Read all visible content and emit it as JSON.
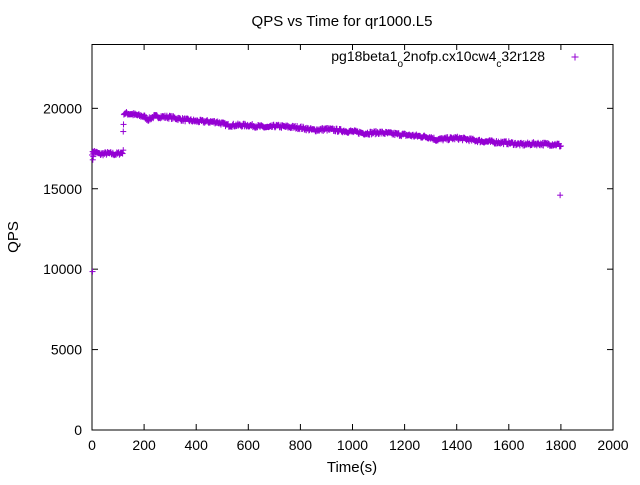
{
  "chart_data": {
    "type": "scatter",
    "title": "QPS vs Time for qr1000.L5",
    "xlabel": "Time(s)",
    "ylabel": "QPS",
    "xlim": [
      0,
      2000
    ],
    "ylim": [
      0,
      24000
    ],
    "x_ticks": [
      0,
      200,
      400,
      600,
      800,
      1000,
      1200,
      1400,
      1600,
      1800,
      2000
    ],
    "y_ticks": [
      0,
      5000,
      10000,
      15000,
      20000
    ],
    "grid": false,
    "legend_position": "top-right",
    "marker": "+",
    "series": [
      {
        "name_parts": [
          {
            "text": "pg18beta1",
            "sub": false
          },
          {
            "text": "o",
            "sub": true
          },
          {
            "text": "2nofp.cx10cw4",
            "sub": false
          },
          {
            "text": "c",
            "sub": true
          },
          {
            "text": "32r128",
            "sub": false
          }
        ],
        "color": "#9400d3",
        "anchors": [
          [
            0,
            17200
          ],
          [
            10,
            17300
          ],
          [
            30,
            17150
          ],
          [
            60,
            17200
          ],
          [
            90,
            17150
          ],
          [
            118,
            17250
          ],
          [
            122,
            19700
          ],
          [
            150,
            19650
          ],
          [
            180,
            19550
          ],
          [
            200,
            19500
          ],
          [
            215,
            19300
          ],
          [
            240,
            19500
          ],
          [
            300,
            19450
          ],
          [
            350,
            19300
          ],
          [
            400,
            19200
          ],
          [
            480,
            19150
          ],
          [
            520,
            18950
          ],
          [
            600,
            18950
          ],
          [
            680,
            18800
          ],
          [
            700,
            18900
          ],
          [
            800,
            18800
          ],
          [
            850,
            18650
          ],
          [
            900,
            18700
          ],
          [
            1000,
            18550
          ],
          [
            1050,
            18450
          ],
          [
            1100,
            18500
          ],
          [
            1200,
            18350
          ],
          [
            1300,
            18200
          ],
          [
            1320,
            18050
          ],
          [
            1400,
            18150
          ],
          [
            1500,
            17950
          ],
          [
            1600,
            17850
          ],
          [
            1650,
            17750
          ],
          [
            1700,
            17800
          ],
          [
            1790,
            17750
          ],
          [
            1800,
            17650
          ]
        ],
        "outliers": [
          [
            2,
            9850
          ],
          [
            3,
            16800
          ],
          [
            5,
            17000
          ],
          [
            6,
            17300
          ],
          [
            120,
            17400
          ],
          [
            121,
            19000
          ],
          [
            1797,
            14600
          ]
        ]
      }
    ]
  }
}
